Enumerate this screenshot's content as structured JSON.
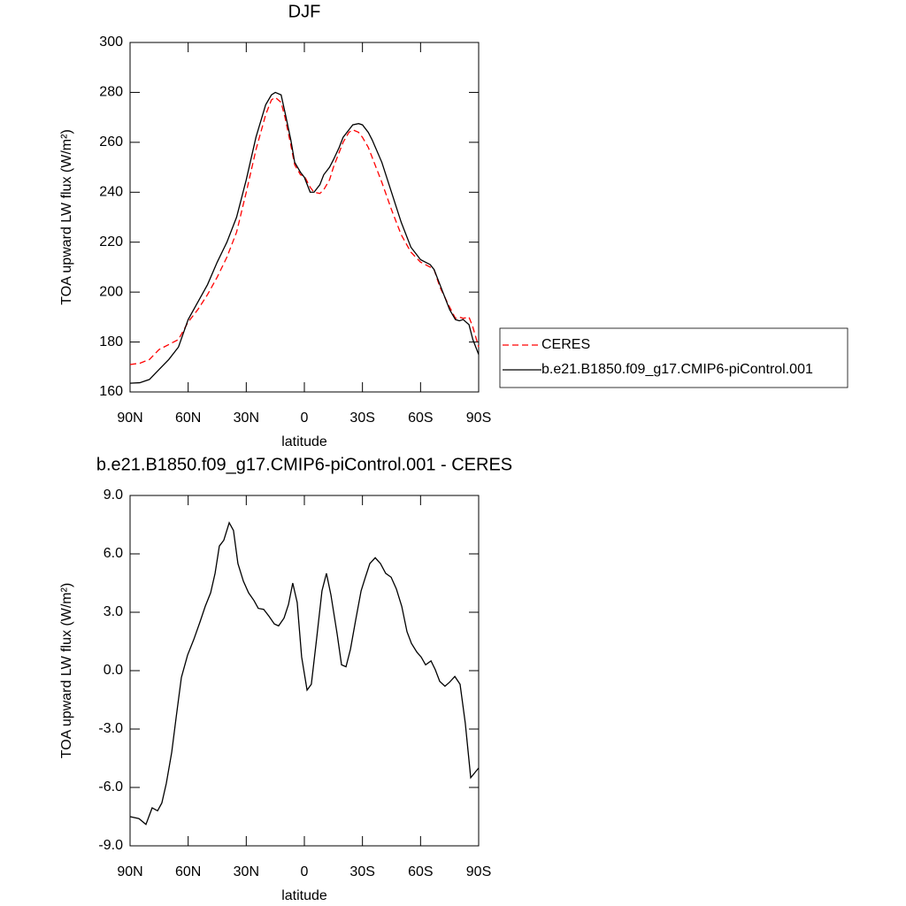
{
  "chart_data": [
    {
      "type": "line",
      "title": "DJF",
      "xlabel": "latitude",
      "ylabel": "TOA upward LW flux (W/m²)",
      "x": [
        90,
        85,
        80,
        75,
        70,
        65,
        60,
        55,
        50,
        45,
        40,
        35,
        30,
        25,
        20,
        17,
        15,
        12,
        10,
        7,
        5,
        2,
        0,
        -3,
        -5,
        -8,
        -10,
        -13,
        -15,
        -18,
        -20,
        -23,
        -25,
        -28,
        -30,
        -33,
        -35,
        -40,
        -45,
        -50,
        -55,
        -60,
        -65,
        -67,
        -70,
        -75,
        -78,
        -80,
        -82,
        -85,
        -87,
        -90
      ],
      "series": [
        {
          "name": "CERES",
          "color": "#ff0000",
          "line_style": "dashed",
          "values": [
            171,
            171.5,
            173,
            177,
            179,
            181,
            188,
            193,
            199,
            206,
            214,
            224,
            240,
            257,
            271,
            277,
            278,
            276,
            270,
            259,
            251,
            247,
            246.5,
            242,
            240,
            239.5,
            241,
            245,
            250,
            256,
            260,
            264,
            265,
            264,
            262,
            258,
            254,
            244,
            233,
            223,
            216,
            212,
            210,
            209,
            202,
            194,
            189.5,
            190,
            189.5,
            190,
            186,
            178
          ]
        },
        {
          "name": "b.e21.B1850.f09_g17.CMIP6-piControl.001",
          "color": "#000000",
          "line_style": "solid",
          "values": [
            163.5,
            163.7,
            165,
            169,
            173,
            178,
            189,
            196,
            203,
            212,
            220,
            230,
            245,
            262,
            275,
            279,
            280,
            279,
            272,
            261,
            252,
            248,
            246,
            240,
            240,
            243,
            247,
            250,
            253,
            258,
            262,
            265,
            267,
            267.5,
            267,
            264,
            261,
            252,
            240,
            228,
            218,
            213,
            211,
            209,
            203,
            193,
            189,
            188.5,
            189,
            187,
            181,
            175
          ]
        }
      ],
      "xlim": [
        90,
        -90
      ],
      "xticks": [
        {
          "value": 90,
          "label": "90N"
        },
        {
          "value": 60,
          "label": "60N"
        },
        {
          "value": 30,
          "label": "30N"
        },
        0,
        {
          "value": -30,
          "label": "30S"
        },
        {
          "value": -60,
          "label": "60S"
        },
        {
          "value": -90,
          "label": "90S"
        }
      ],
      "ylim": [
        160,
        300
      ],
      "yticks": [
        160,
        180,
        200,
        220,
        240,
        260,
        280,
        300
      ],
      "legend": "right"
    },
    {
      "type": "line",
      "title": "b.e21.B1850.f09_g17.CMIP6-piControl.001 - CERES",
      "xlabel": "latitude",
      "ylabel": "TOA upward LW flux (W/m²)",
      "x": [
        90,
        85.4,
        81.8,
        78.6,
        75.8,
        73.6,
        71.3,
        68.5,
        66.2,
        63.5,
        60.3,
        57.1,
        53.9,
        51.2,
        48.4,
        46.1,
        43.9,
        41.6,
        38.8,
        36.6,
        34.3,
        31.5,
        28.8,
        26,
        23.8,
        21,
        18.3,
        15.5,
        13.3,
        10.5,
        8.2,
        6,
        3.7,
        1.4,
        -1.4,
        -3.6,
        -6.4,
        -9.1,
        -11.4,
        -13.7,
        -16.9,
        -19.2,
        -21.5,
        -23.8,
        -26.5,
        -29.3,
        -31.5,
        -33.8,
        -36.6,
        -39.3,
        -42,
        -44.8,
        -47.5,
        -50.3,
        -53,
        -55.3,
        -58.1,
        -60.3,
        -62.6,
        -65.4,
        -67.6,
        -69.9,
        -72.6,
        -74.9,
        -77.7,
        -80.4,
        -83.1,
        -85.9,
        -90
      ],
      "values": [
        -7.5,
        -7.6,
        -7.9,
        -7.05,
        -7.2,
        -6.8,
        -5.8,
        -4.2,
        -2.4,
        -0.35,
        0.8,
        1.6,
        2.5,
        3.3,
        4,
        5,
        6.4,
        6.7,
        7.6,
        7.2,
        5.5,
        4.6,
        4,
        3.6,
        3.2,
        3.15,
        2.8,
        2.4,
        2.3,
        2.7,
        3.4,
        4.5,
        3.5,
        0.7,
        -1,
        -0.7,
        1.7,
        4.1,
        5,
        3.9,
        1.9,
        0.3,
        0.2,
        1.1,
        2.6,
        4.1,
        4.8,
        5.5,
        5.8,
        5.5,
        5,
        4.8,
        4.2,
        3.3,
        2,
        1.4,
        0.95,
        0.7,
        0.3,
        0.5,
        0.05,
        -0.55,
        -0.8,
        -0.6,
        -0.3,
        -0.7,
        -2.7,
        -5.5,
        -5
      ],
      "color": "#000000",
      "xlim": [
        90,
        -90
      ],
      "xticks": [
        {
          "value": 90,
          "label": "90N"
        },
        {
          "value": 60,
          "label": "60N"
        },
        {
          "value": 30,
          "label": "30N"
        },
        0,
        {
          "value": -30,
          "label": "30S"
        },
        {
          "value": -60,
          "label": "60S"
        },
        {
          "value": -90,
          "label": "90S"
        }
      ],
      "ylim": [
        -9,
        9
      ],
      "yticks": [
        {
          "value": -9,
          "label": "-9.0"
        },
        {
          "value": -6,
          "label": "-6.0"
        },
        {
          "value": -3,
          "label": "-3.0"
        },
        {
          "value": 0,
          "label": "0.0"
        },
        {
          "value": 3,
          "label": "3.0"
        },
        {
          "value": 6,
          "label": "6.0"
        },
        {
          "value": 9,
          "label": "9.0"
        }
      ]
    }
  ]
}
